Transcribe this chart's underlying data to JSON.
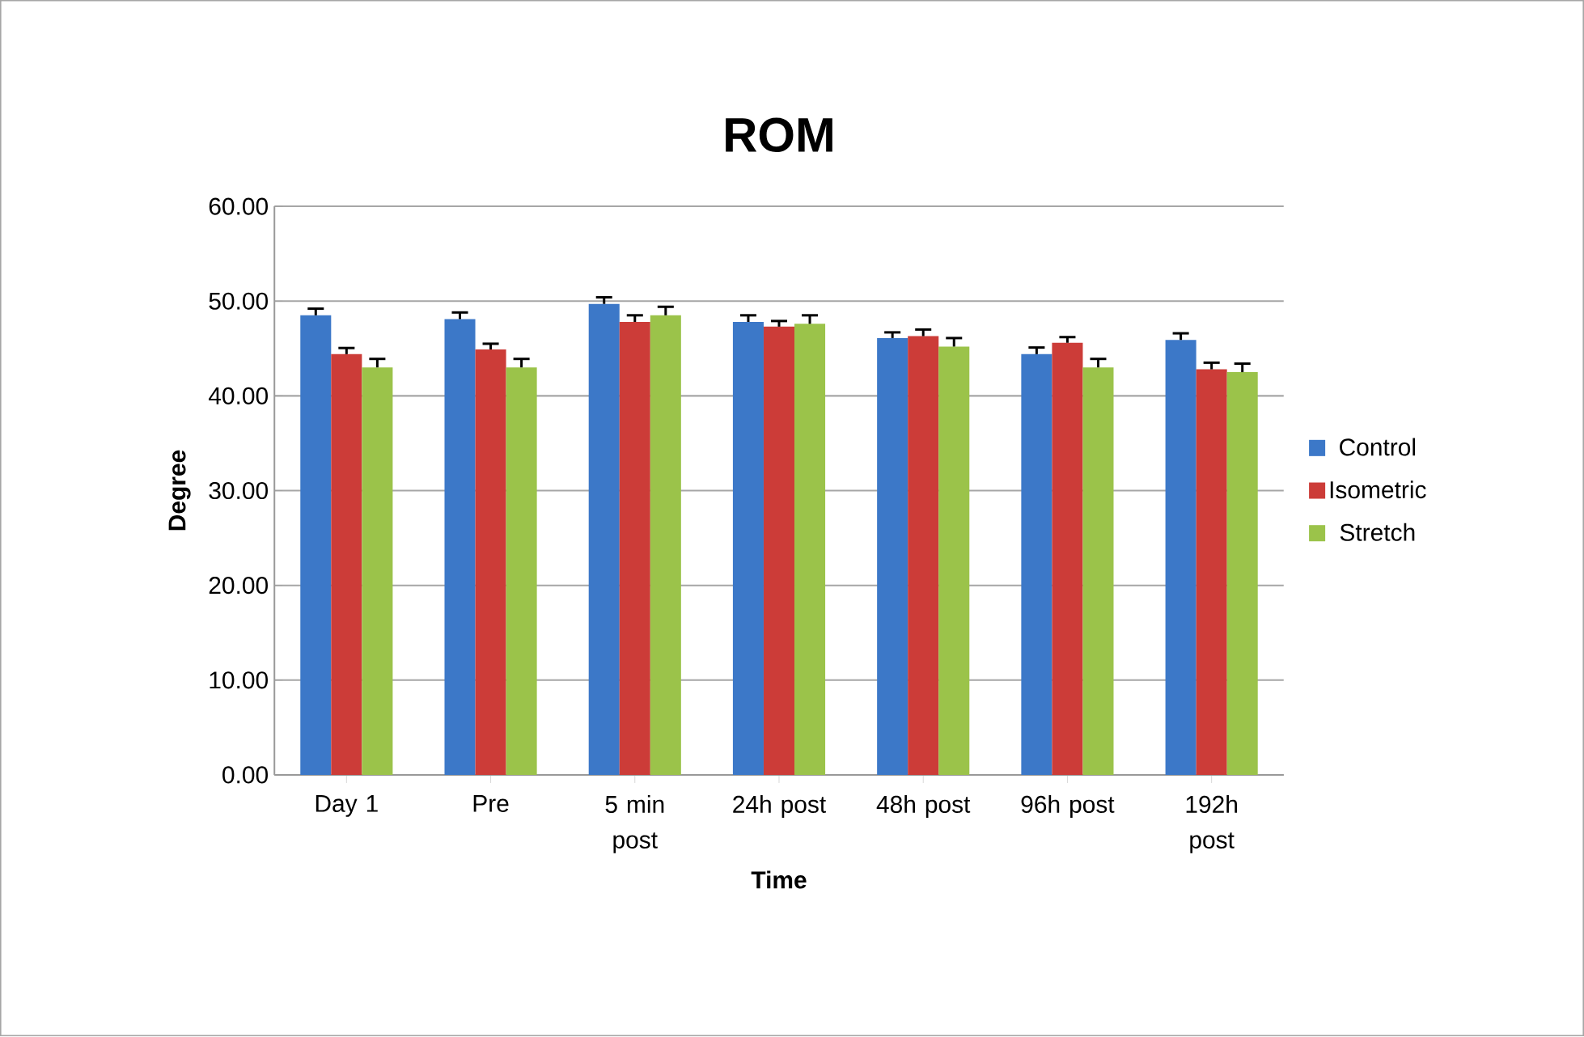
{
  "chart_data": {
    "type": "bar",
    "title": "ROM",
    "xlabel": "Time",
    "ylabel": "Degree",
    "categories": [
      "Day 1",
      "Pre",
      "5 min post",
      "24h post",
      "48h post",
      "96h post",
      "192h post"
    ],
    "series": [
      {
        "name": "Control",
        "color": "#3c78c8",
        "values": [
          48.5,
          48.1,
          49.7,
          47.8,
          46.1,
          44.4,
          45.9
        ],
        "errors": [
          0.7,
          0.7,
          0.7,
          0.7,
          0.6,
          0.7,
          0.7
        ]
      },
      {
        "name": "Isometric",
        "color": "#cc3c38",
        "values": [
          44.4,
          44.9,
          47.8,
          47.3,
          46.3,
          45.6,
          42.8
        ],
        "errors": [
          0.65,
          0.6,
          0.7,
          0.6,
          0.7,
          0.6,
          0.7
        ]
      },
      {
        "name": "Stretch",
        "color": "#9bc34a",
        "values": [
          43.0,
          43.0,
          48.5,
          47.6,
          45.2,
          43.0,
          42.5
        ],
        "errors": [
          0.9,
          0.9,
          0.9,
          0.9,
          0.9,
          0.9,
          0.9
        ]
      }
    ],
    "ylim": [
      0,
      60
    ],
    "yticks": [
      {
        "value": 0,
        "label": "0.00"
      },
      {
        "value": 10,
        "label": "10.00"
      },
      {
        "value": 20,
        "label": "20.00"
      },
      {
        "value": 30,
        "label": "30.00"
      },
      {
        "value": 40,
        "label": "40.00"
      },
      {
        "value": 50,
        "label": "50.00"
      },
      {
        "value": 60,
        "label": "60.00"
      }
    ],
    "grid": "y",
    "legend": "right"
  }
}
